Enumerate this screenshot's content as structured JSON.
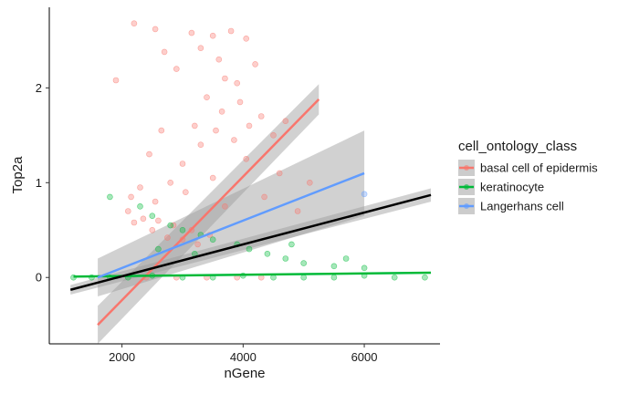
{
  "chart_data": {
    "type": "scatter",
    "title": "",
    "xlabel": "nGene",
    "ylabel": "Top2a",
    "xlim": [
      800,
      7250
    ],
    "ylim": [
      -0.7,
      2.85
    ],
    "x_ticks": [
      2000,
      4000,
      6000
    ],
    "y_ticks": [
      0,
      1,
      2
    ],
    "x_tick_labels": [
      "2000",
      "4000",
      "6000"
    ],
    "y_tick_labels": [
      "0",
      "1",
      "2"
    ],
    "grid": false,
    "legend": {
      "title": "cell_ontology_class",
      "placement": "right",
      "entries": [
        "basal cell of epidermis",
        "keratinocyte",
        "Langerhans cell"
      ]
    },
    "series": [
      {
        "name": "basal cell of epidermis",
        "color": "#F8766D",
        "fit": {
          "x": [
            1600,
            5250
          ],
          "y": [
            -0.5,
            1.88
          ]
        },
        "points": [
          [
            2200,
            2.68
          ],
          [
            2550,
            2.62
          ],
          [
            3150,
            2.58
          ],
          [
            3500,
            2.55
          ],
          [
            3800,
            2.6
          ],
          [
            4050,
            2.52
          ],
          [
            2700,
            2.38
          ],
          [
            3300,
            2.42
          ],
          [
            1900,
            2.08
          ],
          [
            2900,
            2.2
          ],
          [
            3600,
            2.3
          ],
          [
            3700,
            2.1
          ],
          [
            3900,
            2.05
          ],
          [
            4200,
            2.25
          ],
          [
            3400,
            1.9
          ],
          [
            3650,
            1.75
          ],
          [
            3950,
            1.85
          ],
          [
            4300,
            1.7
          ],
          [
            3200,
            1.6
          ],
          [
            3550,
            1.55
          ],
          [
            4100,
            1.6
          ],
          [
            4500,
            1.5
          ],
          [
            3850,
            1.45
          ],
          [
            3300,
            1.4
          ],
          [
            4700,
            1.65
          ],
          [
            2650,
            1.55
          ],
          [
            2450,
            1.3
          ],
          [
            3000,
            1.2
          ],
          [
            2800,
            1.0
          ],
          [
            3500,
            1.05
          ],
          [
            4050,
            1.25
          ],
          [
            4600,
            1.1
          ],
          [
            5100,
            1.0
          ],
          [
            2300,
            0.95
          ],
          [
            2150,
            0.85
          ],
          [
            2550,
            0.8
          ],
          [
            3050,
            0.9
          ],
          [
            3700,
            0.75
          ],
          [
            4350,
            0.85
          ],
          [
            4900,
            0.7
          ],
          [
            2100,
            0.7
          ],
          [
            2350,
            0.62
          ],
          [
            2600,
            0.6
          ],
          [
            2850,
            0.55
          ],
          [
            3150,
            0.5
          ],
          [
            3450,
            0.45
          ],
          [
            2200,
            0.58
          ],
          [
            2500,
            0.5
          ],
          [
            2750,
            0.42
          ],
          [
            3000,
            0.4
          ],
          [
            3250,
            0.35
          ],
          [
            2400,
            0.0
          ],
          [
            2900,
            0.0
          ],
          [
            3400,
            0.0
          ],
          [
            3900,
            0.0
          ],
          [
            4300,
            0.0
          ]
        ]
      },
      {
        "name": "keratinocyte",
        "color": "#00BA38",
        "fit": {
          "x": [
            1200,
            7100
          ],
          "y": [
            0.01,
            0.05
          ]
        },
        "points": [
          [
            1200,
            0.0
          ],
          [
            1500,
            0.0
          ],
          [
            1800,
            0.0
          ],
          [
            2100,
            0.0
          ],
          [
            2500,
            0.02
          ],
          [
            3000,
            0.0
          ],
          [
            3500,
            0.0
          ],
          [
            4000,
            0.02
          ],
          [
            4500,
            0.0
          ],
          [
            5000,
            0.0
          ],
          [
            5500,
            0.0
          ],
          [
            6000,
            0.02
          ],
          [
            6500,
            0.0
          ],
          [
            7000,
            0.0
          ],
          [
            1800,
            0.85
          ],
          [
            2300,
            0.75
          ],
          [
            2500,
            0.65
          ],
          [
            2800,
            0.55
          ],
          [
            3000,
            0.5
          ],
          [
            3300,
            0.45
          ],
          [
            3500,
            0.4
          ],
          [
            3900,
            0.35
          ],
          [
            4100,
            0.3
          ],
          [
            4400,
            0.25
          ],
          [
            4700,
            0.2
          ],
          [
            5000,
            0.15
          ],
          [
            5500,
            0.12
          ],
          [
            6000,
            0.1
          ],
          [
            5700,
            0.2
          ],
          [
            3200,
            0.25
          ],
          [
            2600,
            0.3
          ],
          [
            4800,
            0.35
          ]
        ]
      },
      {
        "name": "Langerhans cell",
        "color": "#619CFF",
        "fit": {
          "x": [
            1600,
            6000
          ],
          "y": [
            0.0,
            1.1
          ]
        },
        "points": [
          [
            6000,
            0.88
          ]
        ]
      }
    ],
    "overall_fit": {
      "color": "#000000",
      "x": [
        1150,
        7100
      ],
      "y": [
        -0.13,
        0.87
      ]
    }
  }
}
